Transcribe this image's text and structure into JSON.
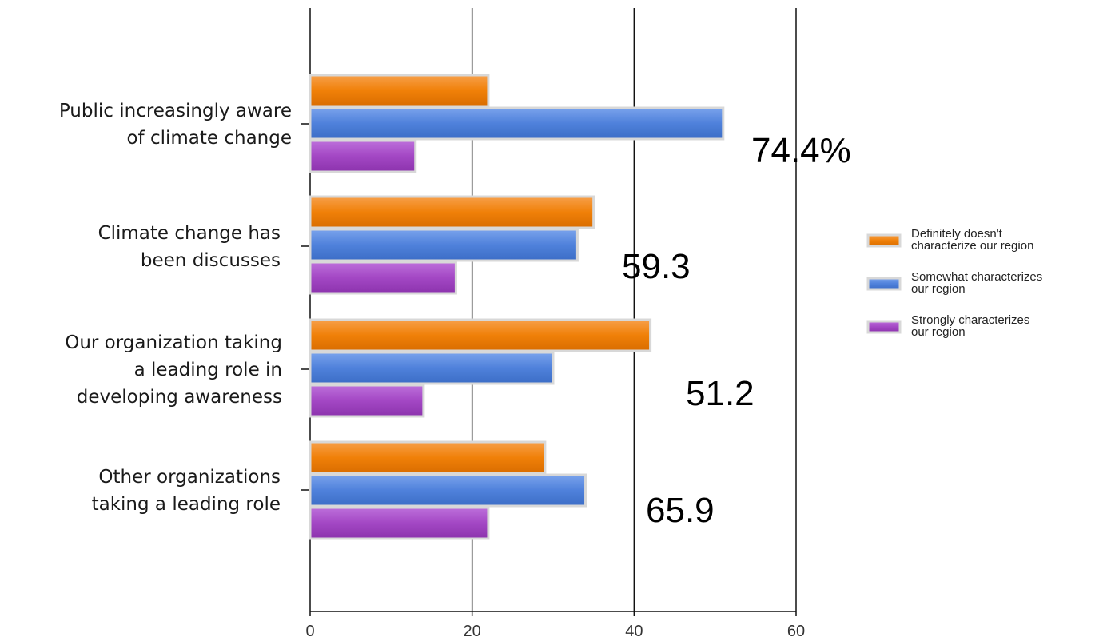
{
  "chart_data": {
    "type": "bar",
    "orientation": "horizontal",
    "categories": [
      [
        "Public increasingly aware",
        "of climate change"
      ],
      [
        "Climate change has",
        "been discusses"
      ],
      [
        "Our organization taking",
        "a leading role in",
        "developing awareness"
      ],
      [
        "Other organizations",
        "taking a leading role"
      ]
    ],
    "series": [
      {
        "name": [
          "Definitely doesn't",
          "characterize our region"
        ],
        "color": "#f07f09",
        "values": [
          22,
          35,
          42,
          29
        ]
      },
      {
        "name": [
          "Somewhat characterizes",
          "our region"
        ],
        "color": "#4f81db",
        "values": [
          51,
          33,
          30,
          34
        ]
      },
      {
        "name": [
          "Strongly characterizes",
          "our region"
        ],
        "color": "#a347c4",
        "values": [
          13,
          18,
          14,
          22
        ]
      }
    ],
    "annotations": [
      "74.4%",
      "59.3",
      "51.2",
      "65.9"
    ],
    "xlim": [
      0,
      60
    ],
    "xticks": [
      "0",
      "20",
      "40",
      "60"
    ],
    "grid": true,
    "legend": "right"
  }
}
